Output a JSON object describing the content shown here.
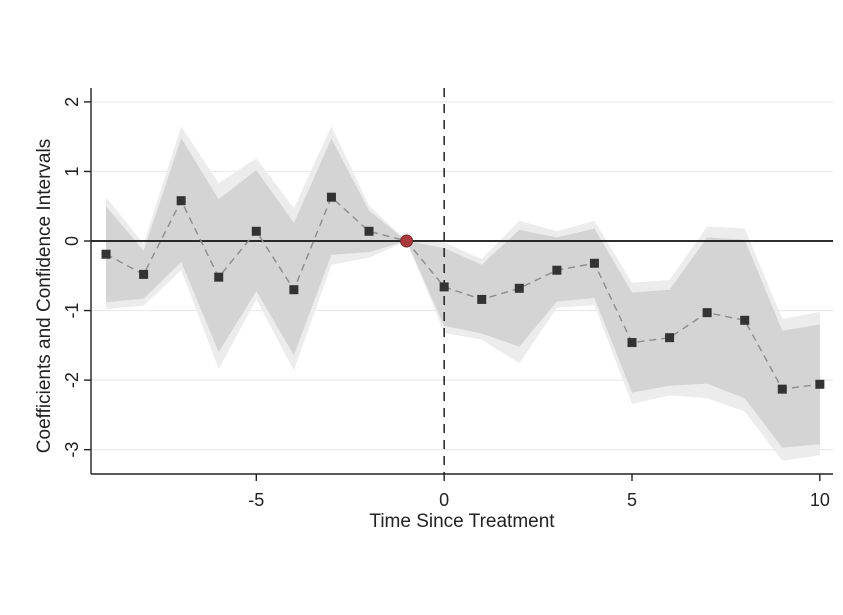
{
  "chart_data": {
    "type": "line",
    "title": "",
    "xlabel": "Time Since Treatment",
    "ylabel": "Coefficients and Confidence Intervals",
    "xlim": [
      -9.4,
      10.35
    ],
    "ylim": [
      -3.35,
      2.2
    ],
    "x_ticks": [
      -5,
      0,
      5,
      10
    ],
    "x_tick_labels": [
      "-5",
      "0",
      "5",
      "10"
    ],
    "y_ticks": [
      -3,
      -2,
      -1,
      0,
      1,
      2
    ],
    "y_tick_labels": [
      "-3",
      "-2",
      "-1",
      "0",
      "1",
      "2"
    ],
    "grid": "horizontal",
    "legend": "none",
    "zero_line": 0,
    "treatment_line_x": 0,
    "reference_point": {
      "x": -1,
      "y": 0,
      "color": "#a83a3e"
    },
    "colors": {
      "marker": "#333333",
      "connector": "#8c8c8c",
      "inner_band": "#d4d4d4",
      "outer_band": "#ececec",
      "grid": "#eaeaea",
      "axis": "#222222"
    },
    "series": [
      {
        "x": [
          -9,
          -8,
          -7,
          -6,
          -5,
          -4,
          -3,
          -2,
          -1,
          0,
          1,
          2,
          3,
          4,
          5,
          6,
          7,
          8,
          9,
          10
        ],
        "y": [
          -0.19,
          -0.48,
          0.58,
          -0.52,
          0.14,
          -0.7,
          0.63,
          0.14,
          0.0,
          -0.66,
          -0.84,
          -0.68,
          -0.42,
          -0.32,
          -1.46,
          -1.39,
          -1.03,
          -1.14,
          -2.13,
          -2.06
        ],
        "ci_inner_low": [
          -0.88,
          -0.83,
          -0.3,
          -1.6,
          -0.72,
          -1.64,
          -0.2,
          -0.16,
          0.0,
          -1.22,
          -1.33,
          -1.52,
          -0.87,
          -0.82,
          -2.18,
          -2.08,
          -2.05,
          -2.26,
          -2.97,
          -2.92
        ],
        "ci_inner_high": [
          0.5,
          -0.14,
          1.48,
          0.6,
          1.02,
          0.26,
          1.47,
          0.44,
          0.0,
          -0.1,
          -0.34,
          0.16,
          0.05,
          0.18,
          -0.74,
          -0.7,
          0.05,
          0.02,
          -1.29,
          -1.2
        ],
        "ci_outer_low": [
          -0.98,
          -0.93,
          -0.42,
          -1.84,
          -0.84,
          -1.86,
          -0.34,
          -0.24,
          0.0,
          -1.32,
          -1.42,
          -1.76,
          -0.96,
          -0.92,
          -2.34,
          -2.22,
          -2.26,
          -2.45,
          -3.16,
          -3.08
        ],
        "ci_outer_high": [
          0.63,
          -0.04,
          1.65,
          0.83,
          1.19,
          0.47,
          1.65,
          0.51,
          0.0,
          -0.02,
          -0.26,
          0.29,
          0.14,
          0.29,
          -0.6,
          -0.56,
          0.21,
          0.18,
          -1.12,
          -1.02
        ]
      }
    ]
  }
}
